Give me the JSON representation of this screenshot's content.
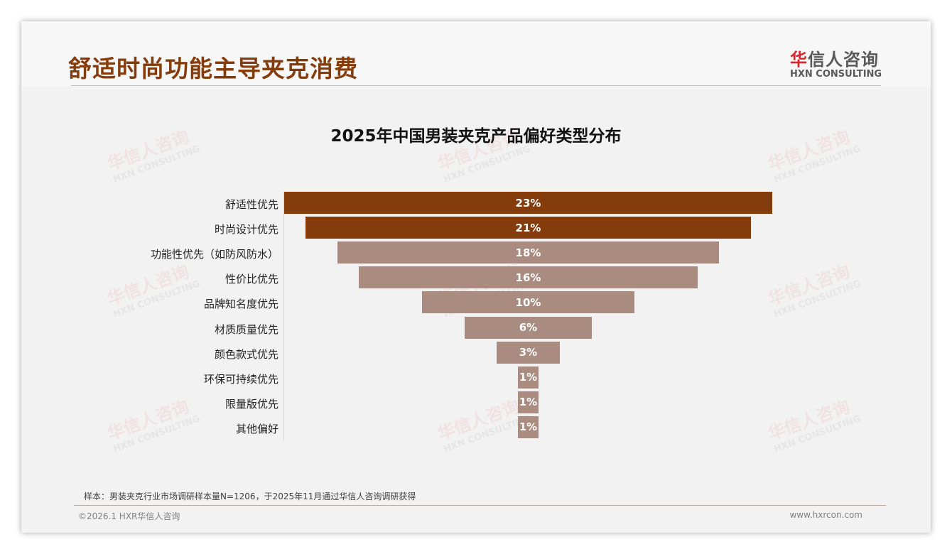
{
  "header": {
    "title": "舒适时尚功能主导夹克消费",
    "logo_cn_first": "华",
    "logo_cn_rest": "信人咨询",
    "logo_en": "HXN CONSULTING"
  },
  "watermark": {
    "cn": "华信人咨询",
    "en": "HXN CONSULTING"
  },
  "chart_data": {
    "type": "bar",
    "subtype": "funnel",
    "title": "2025年中国男装夹克产品偏好类型分布",
    "categories": [
      "舒适性优先",
      "时尚设计优先",
      "功能性优先（如防风防水）",
      "性价比优先",
      "品牌知名度优先",
      "材质质量优先",
      "颜色款式优先",
      "环保可持续优先",
      "限量版优先",
      "其他偏好"
    ],
    "values": [
      23,
      21,
      18,
      16,
      10,
      6,
      3,
      1,
      1,
      1
    ],
    "labels": [
      "23%",
      "21%",
      "18%",
      "16%",
      "10%",
      "6%",
      "3%",
      "1%",
      "1%",
      "1%"
    ],
    "colors": [
      "#843c0c",
      "#843c0c",
      "#a98b80",
      "#a98b80",
      "#a98b80",
      "#a98b80",
      "#a98b80",
      "#a98b80",
      "#a98b80",
      "#a98b80"
    ],
    "xlabel": "",
    "ylabel": ""
  },
  "footer": {
    "note": "样本：男装夹克行业市场调研样本量N=1206，于2025年11月通过华信人咨询调研获得",
    "copyright": "©2026.1 HXR华信人咨询",
    "url": "www.hxrcon.com"
  }
}
